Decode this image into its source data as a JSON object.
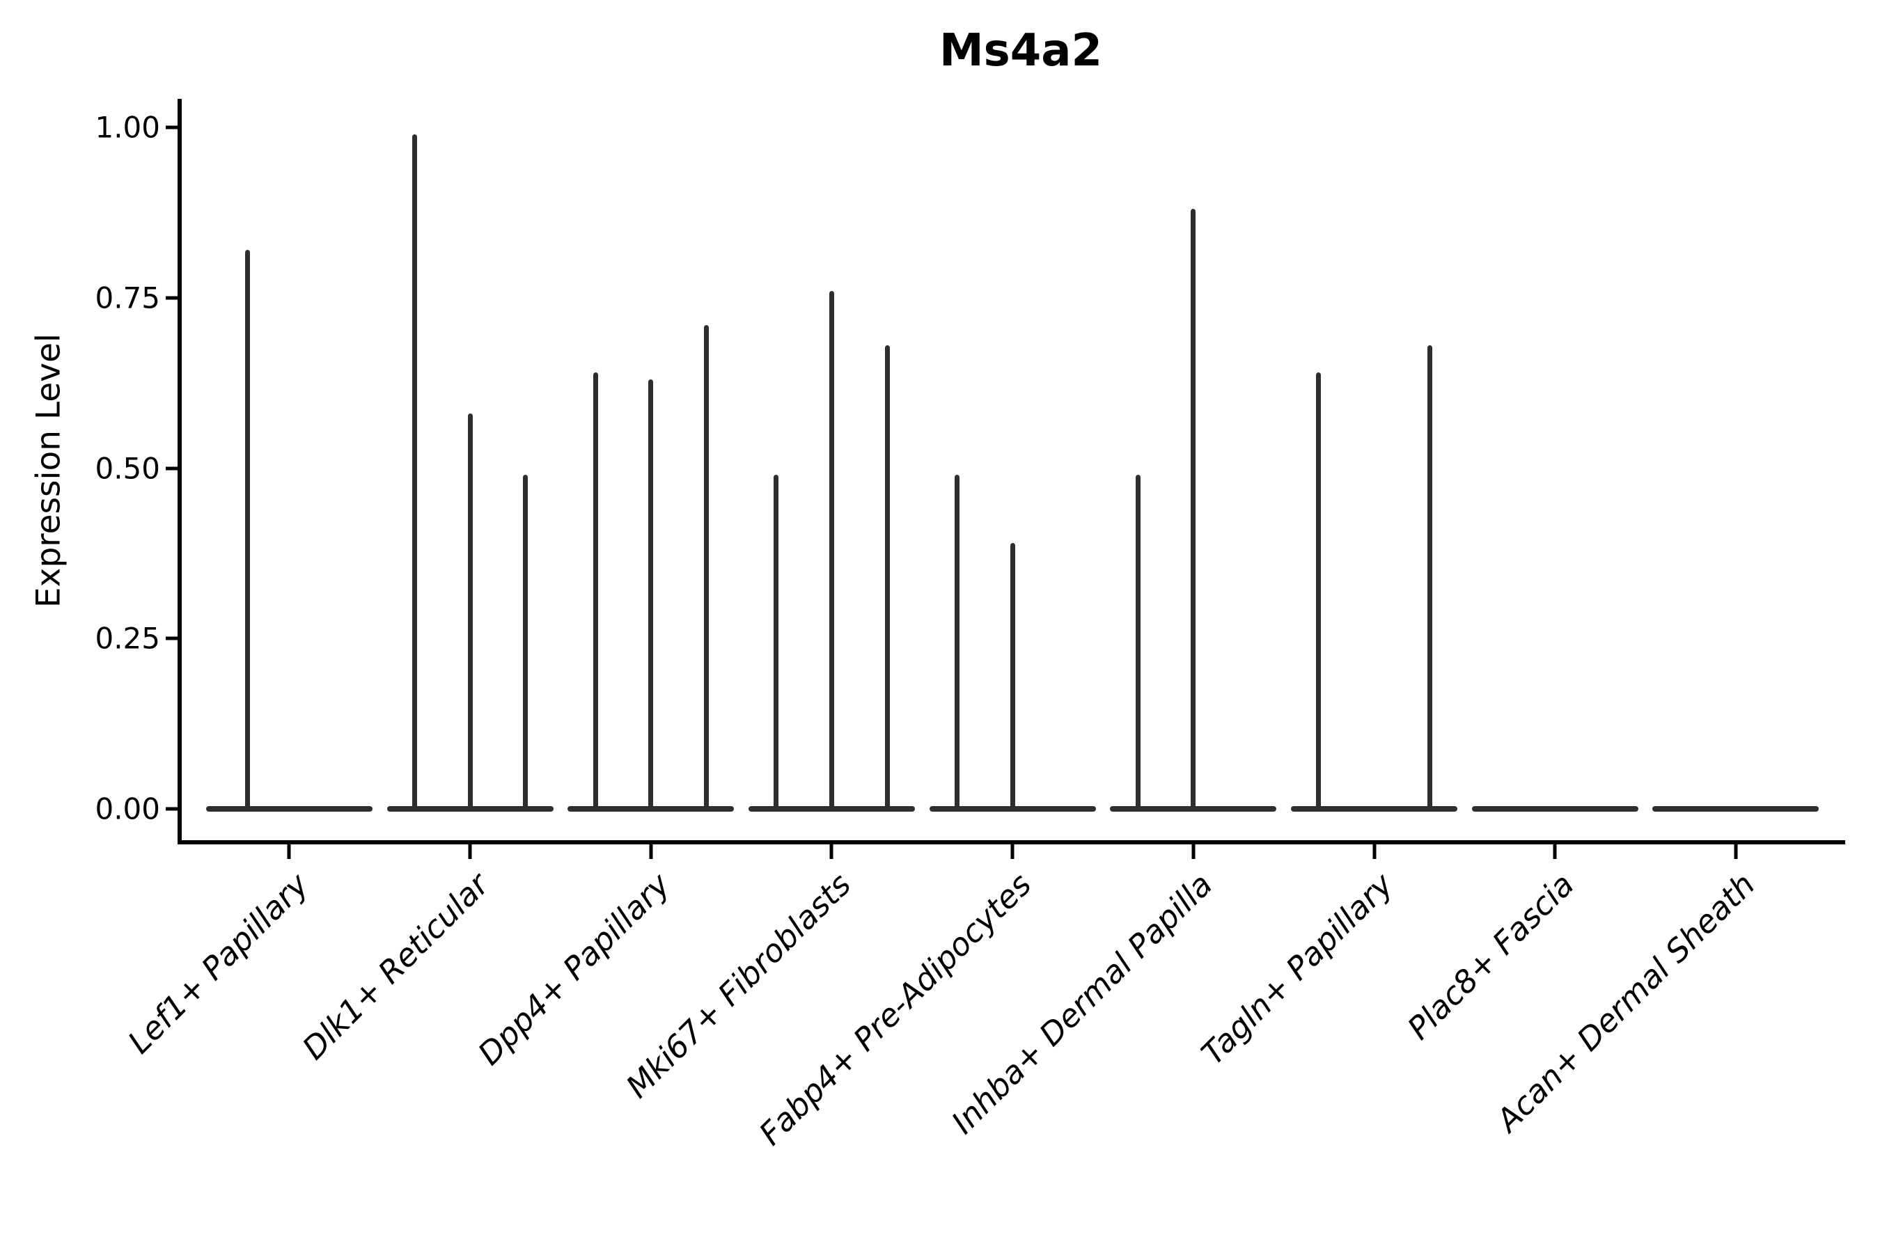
{
  "figure": {
    "title": "Ms4a2",
    "y_axis_title": "Expression Level"
  },
  "colors": {
    "violin": "#2e2e2e",
    "axis": "#000000",
    "text": "#000000",
    "background": "#ffffff"
  },
  "chart_data": {
    "type": "violin",
    "title": "Ms4a2",
    "xlabel": "",
    "ylabel": "Expression Level",
    "ylim": [
      0,
      1.05
    ],
    "grid": false,
    "legend_position": "none",
    "x_label_rotation_deg": 45,
    "x_label_style": "italic",
    "ytick_values": [
      0,
      0.25,
      0.5,
      0.75,
      1.0
    ],
    "ytick_labels": [
      "0.00",
      "0.25",
      "0.50",
      "0.75",
      "1.00"
    ],
    "categories": [
      "Lef1+ Papillary",
      "Dlk1+ Reticular",
      "Dpp4+ Papillary",
      "Mki67+ Fibroblasts",
      "Fabp4+ Pre-Adipocytes",
      "Inhba+ Dermal Papilla",
      "Tagln+ Papillary",
      "Plac8+ Fascia",
      "Acan+ Dermal Sheath"
    ],
    "violins": [
      {
        "category": "Lef1+ Papillary",
        "sub_violin_peaks": [
          0.82,
          0
        ]
      },
      {
        "category": "Dlk1+ Reticular",
        "sub_violin_peaks": [
          0.99,
          0.58,
          0.49
        ]
      },
      {
        "category": "Dpp4+ Papillary",
        "sub_violin_peaks": [
          0.64,
          0.63,
          0.71
        ]
      },
      {
        "category": "Mki67+ Fibroblasts",
        "sub_violin_peaks": [
          0.49,
          0.76,
          0.68
        ]
      },
      {
        "category": "Fabp4+ Pre-Adipocytes",
        "sub_violin_peaks": [
          0.49,
          0.39,
          0
        ]
      },
      {
        "category": "Inhba+ Dermal Papilla",
        "sub_violin_peaks": [
          0.49,
          0.88,
          0
        ]
      },
      {
        "category": "Tagln+ Papillary",
        "sub_violin_peaks": [
          0.64,
          0,
          0.68
        ]
      },
      {
        "category": "Plac8+ Fascia",
        "sub_violin_peaks": [
          0,
          0,
          0
        ]
      },
      {
        "category": "Acan+ Dermal Sheath",
        "sub_violin_peaks": [
          0,
          0,
          0
        ]
      }
    ]
  }
}
